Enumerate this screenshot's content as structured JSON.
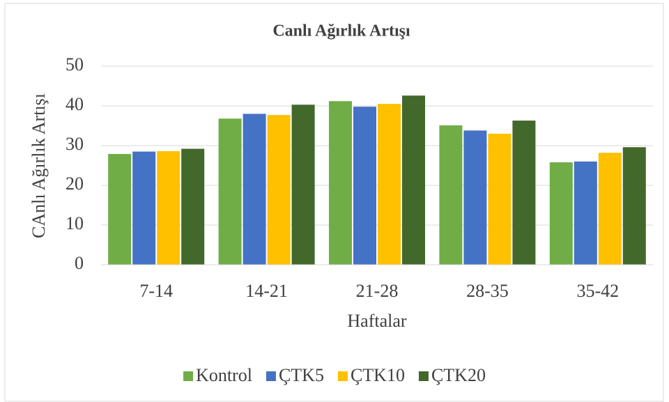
{
  "chart_data": {
    "type": "bar",
    "title": "Canlı Ağırlık Artışı",
    "x_label": "Haftalar",
    "y_label": "CAnlı Ağırlık Artışı",
    "categories": [
      "7-14",
      "14-21",
      "21-28",
      "28-35",
      "35-42"
    ],
    "series": [
      {
        "name": "Kontrol",
        "color": "#70ad47",
        "values": [
          27.9,
          36.8,
          41.2,
          35.1,
          25.8
        ]
      },
      {
        "name": "ÇTK5",
        "color": "#4472c4",
        "values": [
          28.5,
          38.0,
          39.8,
          33.8,
          26.0
        ]
      },
      {
        "name": "ÇTK10",
        "color": "#ffc000",
        "values": [
          28.6,
          37.7,
          40.5,
          33.0,
          28.2
        ]
      },
      {
        "name": "ÇTK20",
        "color": "#43682b",
        "values": [
          29.2,
          40.3,
          42.6,
          36.3,
          29.6
        ]
      }
    ],
    "ylim": [
      0,
      50
    ],
    "yticks": [
      0,
      10,
      20,
      30,
      40,
      50
    ],
    "grid": true,
    "legend": "bottom"
  }
}
